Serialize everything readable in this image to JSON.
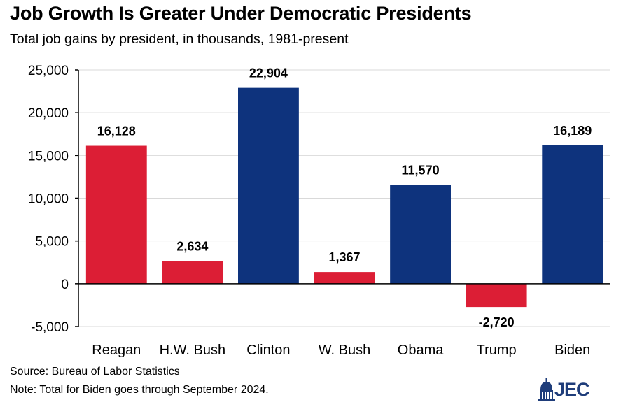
{
  "title": "Job Growth Is Greater Under Democratic Presidents",
  "subtitle": "Total job gains by president, in thousands, 1981-present",
  "footnotes": {
    "source": "Source: Bureau of Labor Statistics",
    "note": "Note: Total for Biden goes through September 2024."
  },
  "logo": {
    "text": "JEC",
    "icon": "capitol-dome-icon"
  },
  "colors": {
    "republican": "#DC1E35",
    "democratic": "#0E337D"
  },
  "chart_data": {
    "type": "bar",
    "title": "Job Growth Is Greater Under Democratic Presidents",
    "subtitle": "Total job gains by president, in thousands, 1981-present",
    "xlabel": "",
    "ylabel": "",
    "ylim": [
      -5000,
      25000
    ],
    "yticks": [
      -5000,
      0,
      5000,
      10000,
      15000,
      20000,
      25000
    ],
    "ytick_labels": [
      "-5,000",
      "0",
      "5,000",
      "10,000",
      "15,000",
      "20,000",
      "25,000"
    ],
    "grid": true,
    "categories": [
      "Reagan",
      "H.W. Bush",
      "Clinton",
      "W. Bush",
      "Obama",
      "Trump",
      "Biden"
    ],
    "values": [
      16128,
      2634,
      22904,
      1367,
      11570,
      -2720,
      16189
    ],
    "value_labels": [
      "16,128",
      "2,634",
      "22,904",
      "1,367",
      "11,570",
      "-2,720",
      "16,189"
    ],
    "bar_colors": [
      "#DC1E35",
      "#DC1E35",
      "#0E337D",
      "#DC1E35",
      "#0E337D",
      "#DC1E35",
      "#0E337D"
    ]
  }
}
